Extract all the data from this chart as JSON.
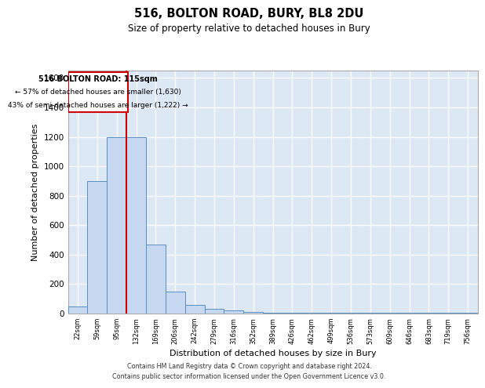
{
  "title": "516, BOLTON ROAD, BURY, BL8 2DU",
  "subtitle": "Size of property relative to detached houses in Bury",
  "xlabel": "Distribution of detached houses by size in Bury",
  "ylabel": "Number of detached properties",
  "categories": [
    "22sqm",
    "59sqm",
    "95sqm",
    "132sqm",
    "169sqm",
    "206sqm",
    "242sqm",
    "279sqm",
    "316sqm",
    "352sqm",
    "389sqm",
    "426sqm",
    "462sqm",
    "499sqm",
    "536sqm",
    "573sqm",
    "609sqm",
    "646sqm",
    "683sqm",
    "719sqm",
    "756sqm"
  ],
  "values": [
    50,
    900,
    1200,
    1200,
    470,
    150,
    60,
    30,
    20,
    10,
    5,
    5,
    5,
    5,
    3,
    3,
    3,
    3,
    3,
    3,
    3
  ],
  "bar_color": "#c5d8ef",
  "bar_edge_color": "#5b8ec4",
  "red_line_color": "#cc0000",
  "annotation_title": "516 BOLTON ROAD: 115sqm",
  "annotation_line1": "← 57% of detached houses are smaller (1,630)",
  "annotation_line2": "43% of semi-detached houses are larger (1,222) →",
  "annotation_box_color": "#cc0000",
  "ylim": [
    0,
    1650
  ],
  "yticks": [
    0,
    200,
    400,
    600,
    800,
    1000,
    1200,
    1400,
    1600
  ],
  "footer_line1": "Contains HM Land Registry data © Crown copyright and database right 2024.",
  "footer_line2": "Contains public sector information licensed under the Open Government Licence v3.0.",
  "plot_bg_color": "#dde8f5"
}
